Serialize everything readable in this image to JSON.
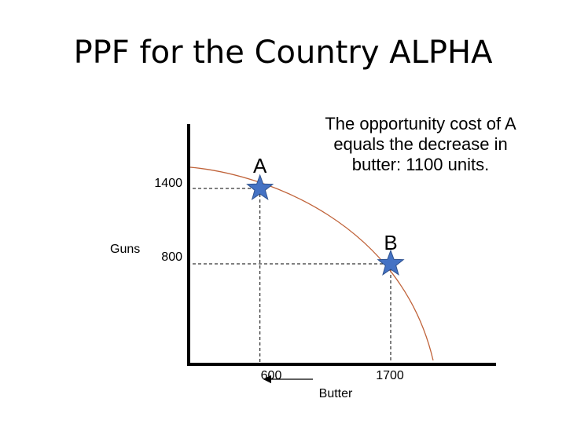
{
  "slide": {
    "title": "PPF for the Country ALPHA",
    "note": "The opportunity cost of A equals the decrease in butter: 1100 units."
  },
  "chart_data": {
    "type": "line",
    "xlabel": "Butter",
    "ylabel": "Guns",
    "xlim": [
      0,
      1800
    ],
    "ylim": [
      0,
      1750
    ],
    "curve_color": "#c0633a",
    "marker_color": "#4472c4",
    "x_tick_labels": [
      "600",
      "1700"
    ],
    "y_tick_labels": [
      "1400",
      "800"
    ],
    "points": [
      {
        "name": "A",
        "x": 600,
        "y": 1400
      },
      {
        "name": "B",
        "x": 1700,
        "y": 800
      }
    ],
    "arrow": "left"
  }
}
